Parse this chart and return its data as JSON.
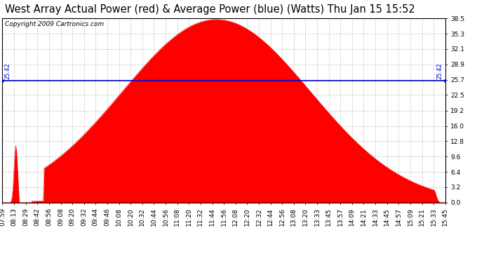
{
  "title": "West Array Actual Power (red) & Average Power (blue) (Watts) Thu Jan 15 15:52",
  "copyright": "Copyright 2009 Cartronics.com",
  "average_power": 25.42,
  "y_max": 38.5,
  "y_min": 0.0,
  "y_ticks": [
    0.0,
    3.2,
    6.4,
    9.6,
    12.8,
    16.0,
    19.2,
    22.5,
    25.7,
    28.9,
    32.1,
    35.3,
    38.5
  ],
  "x_labels": [
    "07:59",
    "08:13",
    "08:29",
    "08:42",
    "08:56",
    "09:08",
    "09:20",
    "09:32",
    "09:44",
    "09:46",
    "10:08",
    "10:20",
    "10:32",
    "10:44",
    "10:56",
    "11:08",
    "11:20",
    "11:32",
    "11:44",
    "11:56",
    "12:08",
    "12:20",
    "12:32",
    "12:44",
    "12:56",
    "13:08",
    "13:20",
    "13:33",
    "13:45",
    "13:57",
    "14:09",
    "14:21",
    "14:33",
    "14:45",
    "14:57",
    "15:09",
    "15:21",
    "15:33",
    "15:45"
  ],
  "fill_color": "#FF0000",
  "line_color": "#0000CC",
  "bg_color": "#FFFFFF",
  "plot_bg_color": "#FFFFFF",
  "grid_color": "#AAAAAA",
  "title_fontsize": 10.5,
  "copyright_fontsize": 6.5,
  "label_fontsize": 6.5
}
